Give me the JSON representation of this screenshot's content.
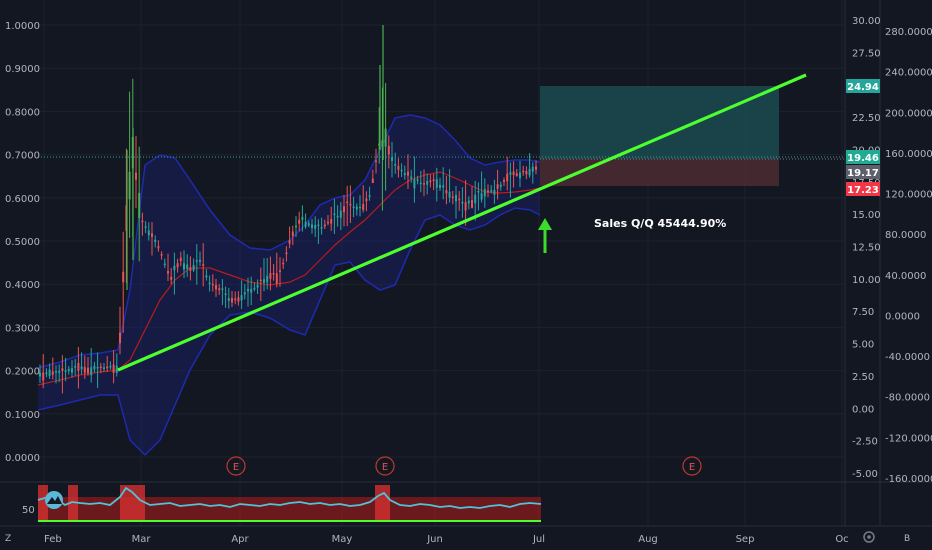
{
  "chart_data": {
    "type": "line",
    "x_ticks": [
      "Feb",
      "Mar",
      "Apr",
      "May",
      "Jun",
      "Jul",
      "Aug",
      "Sep",
      "Oc"
    ],
    "left_axis": {
      "ticks": [
        "1.0000",
        "0.9000",
        "0.8000",
        "0.7000",
        "0.6000",
        "0.5000",
        "0.4000",
        "0.3000",
        "0.2000",
        "0.1000",
        "0.0000"
      ],
      "ylim": [
        -0.05,
        1.05
      ]
    },
    "mid_axis": {
      "ticks": [
        "30.00",
        "27.50",
        "25.00",
        "22.50",
        "20.00",
        "17.50",
        "15.00",
        "12.50",
        "10.00",
        "7.50",
        "5.00",
        "2.50",
        "0.00",
        "-2.50",
        "-5.00"
      ],
      "ylim": [
        -5,
        30
      ]
    },
    "right_axis": {
      "ticks": [
        "280.0000",
        "240.0000",
        "200.0000",
        "160.0000",
        "120.0000",
        "80.0000",
        "40.0000",
        "0.0000",
        "-40.0000",
        "-80.0000",
        "-120.0000",
        "-160.0000"
      ]
    },
    "price_labels": [
      {
        "value": "24.94",
        "color": "#26a69a"
      },
      {
        "value": "19.46",
        "color": "#22ab94"
      },
      {
        "value": "19.17",
        "color": "#5d606b"
      },
      {
        "value": "17.23",
        "color": "#f23645"
      }
    ],
    "trendline": {
      "from": [
        "Feb 27",
        0.205
      ],
      "to": [
        "Sep 20",
        0.89
      ]
    },
    "annotation": "Sales Q/Q 45444.90%",
    "earnings_markers": [
      "E",
      "E",
      "E"
    ],
    "oscillator": {
      "label": "50"
    },
    "bottom_corner_left": "Z",
    "bottom_corner_right": "B",
    "corner_icon": "gear-icon",
    "colors": {
      "background": "#131722",
      "up": "#26a69a",
      "up_bright": "#4caf50",
      "down": "#ef5350",
      "bands": "#1e2ab0",
      "trendline": "#4cff2f",
      "ma": "#b71c1c",
      "target_zone": "#1b4b4f",
      "stop_zone": "#4a2a32"
    }
  }
}
